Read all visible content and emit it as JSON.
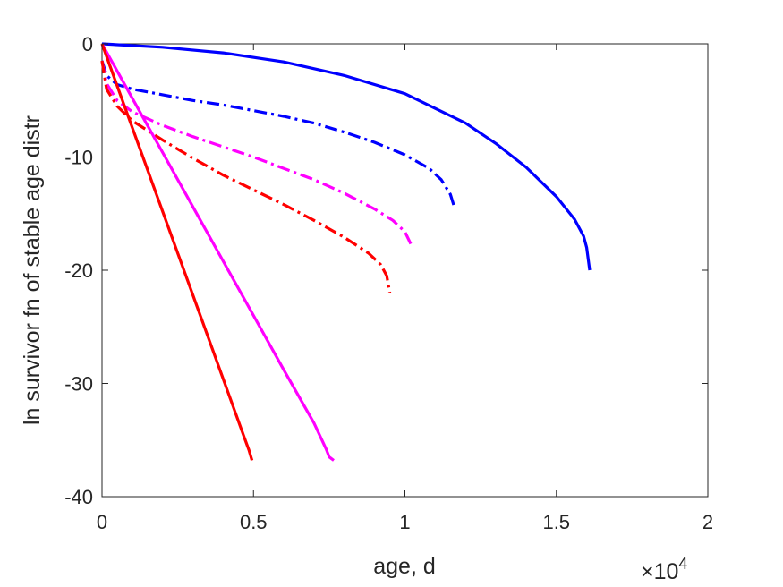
{
  "chart_data": {
    "type": "line",
    "title": "",
    "xlabel": "age, d",
    "ylabel": "ln survivor fn of stable age distr",
    "x_exponent_label": {
      "base": "×10",
      "exp": "4"
    },
    "xlim": [
      0,
      20000
    ],
    "ylim": [
      -40,
      0
    ],
    "xticks": [
      0,
      5000,
      10000,
      15000,
      20000
    ],
    "xtick_labels": [
      "0",
      "0.5",
      "1",
      "1.5",
      "2"
    ],
    "yticks": [
      0,
      -10,
      -20,
      -30,
      -40
    ],
    "ytick_labels": [
      "0",
      "-10",
      "-20",
      "-30",
      "-40"
    ],
    "grid": false,
    "legend": "none",
    "series": [
      {
        "color": "#0000ff",
        "style": "solid",
        "x": [
          0,
          2000,
          4000,
          6000,
          8000,
          10000,
          12000,
          13000,
          14000,
          15000,
          15600,
          15900,
          16000,
          16050,
          16100
        ],
        "y": [
          0,
          -0.3,
          -0.8,
          -1.6,
          -2.8,
          -4.4,
          -7.0,
          -8.8,
          -10.9,
          -13.5,
          -15.5,
          -17.0,
          -18.0,
          -19.0,
          -20.0
        ]
      },
      {
        "color": "#0000ff",
        "style": "dashdot",
        "x": [
          0,
          150,
          500,
          1000,
          2000,
          3000,
          4000,
          5000,
          6000,
          7000,
          8000,
          9000,
          10000,
          10800,
          11200,
          11500,
          11650
        ],
        "y": [
          -1.5,
          -2.8,
          -3.6,
          -4.0,
          -4.5,
          -5.0,
          -5.4,
          -5.9,
          -6.4,
          -7.0,
          -7.8,
          -8.7,
          -9.8,
          -11.0,
          -12.0,
          -13.3,
          -14.6
        ]
      },
      {
        "color": "#ff00ff",
        "style": "dashdot",
        "x": [
          0,
          150,
          500,
          1000,
          2000,
          3000,
          4000,
          5000,
          6000,
          7000,
          8000,
          9000,
          9600,
          10000,
          10250
        ],
        "y": [
          -1.5,
          -3.5,
          -5.0,
          -6.0,
          -7.2,
          -8.2,
          -9.1,
          -10.0,
          -11.0,
          -12.0,
          -13.2,
          -14.6,
          -15.6,
          -16.6,
          -18.0
        ]
      },
      {
        "color": "#ff0000",
        "style": "dashdot",
        "x": [
          0,
          150,
          500,
          1000,
          2000,
          3000,
          4000,
          5000,
          6000,
          7000,
          8000,
          8800,
          9200,
          9400,
          9500
        ],
        "y": [
          -1.5,
          -4.0,
          -5.5,
          -6.8,
          -8.5,
          -10.1,
          -11.6,
          -12.9,
          -14.2,
          -15.6,
          -17.1,
          -18.5,
          -19.5,
          -20.5,
          -22.0
        ]
      },
      {
        "color": "#ff00ff",
        "style": "solid",
        "x": [
          0,
          1000,
          2000,
          3000,
          4000,
          5000,
          6000,
          7000,
          7400,
          7500,
          7650
        ],
        "y": [
          0,
          -4.8,
          -9.6,
          -14.4,
          -19.2,
          -24.0,
          -28.8,
          -33.5,
          -35.8,
          -36.5,
          -36.8
        ]
      },
      {
        "color": "#ff0000",
        "style": "solid",
        "x": [
          0,
          1000,
          2000,
          3000,
          4000,
          4700,
          4850,
          4950
        ],
        "y": [
          0,
          -7.4,
          -14.8,
          -22.2,
          -29.6,
          -34.8,
          -35.9,
          -36.8
        ]
      }
    ]
  }
}
